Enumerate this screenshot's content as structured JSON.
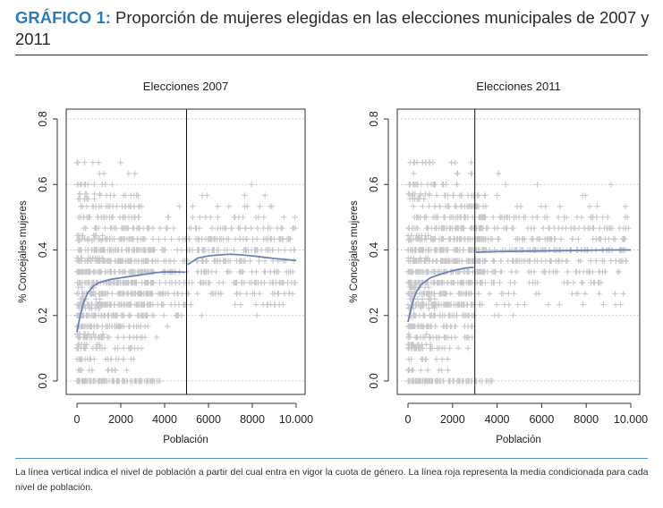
{
  "header": {
    "label": "GRÁFICO 1:",
    "title": "Proporción de mujeres elegidas en las elecciones municipales de 2007 y 2011"
  },
  "footnote": "La línea vertical indica el nivel de población a partir del cual entra en vigor la cuota de género. La línea roja representa la media condicionada para cada nivel de población.",
  "colors": {
    "label": "#2b7cb8",
    "points": "#c8c8cc",
    "line": "#6f82b8",
    "axis": "#333333",
    "grid": "#c4c4c4"
  },
  "chart_data": [
    {
      "type": "scatter",
      "title": "Elecciones 2007",
      "xlabel": "Población",
      "ylabel": "% Concejales mujeres",
      "xlim": [
        0,
        10000
      ],
      "ylim": [
        0,
        0.8
      ],
      "x_ticks": [
        0,
        2000,
        4000,
        6000,
        8000,
        10000
      ],
      "x_tick_labels": [
        "0",
        "2000",
        "4000",
        "6000",
        "8000",
        "10.000"
      ],
      "y_ticks": [
        0,
        0.2,
        0.4,
        0.6,
        0.8
      ],
      "y_tick_labels": [
        "0.0",
        "0.2",
        "0.4",
        "0.6",
        "0.8"
      ],
      "grid": "horizontal dotted",
      "marker": "+",
      "vline_x": 5000,
      "smooth_line": {
        "x": [
          0,
          150,
          300,
          500,
          750,
          1000,
          1500,
          2000,
          2500,
          3000,
          3500,
          4000,
          4500,
          4950,
          5050,
          5500,
          6000,
          6500,
          7000,
          7500,
          8000,
          8500,
          9000,
          9500,
          10000
        ],
        "y": [
          0.15,
          0.2,
          0.24,
          0.27,
          0.29,
          0.3,
          0.31,
          0.315,
          0.32,
          0.325,
          0.33,
          0.333,
          0.333,
          0.332,
          0.355,
          0.375,
          0.382,
          0.385,
          0.387,
          0.385,
          0.382,
          0.378,
          0.374,
          0.371,
          0.368
        ]
      }
    },
    {
      "type": "scatter",
      "title": "Elecciones 2011",
      "xlabel": "Población",
      "ylabel": "% Concejales mujeres",
      "xlim": [
        0,
        10000
      ],
      "ylim": [
        0,
        0.8
      ],
      "x_ticks": [
        0,
        2000,
        4000,
        6000,
        8000,
        10000
      ],
      "x_tick_labels": [
        "0",
        "2000",
        "4000",
        "6000",
        "8000",
        "10.000"
      ],
      "y_ticks": [
        0,
        0.2,
        0.4,
        0.6,
        0.8
      ],
      "y_tick_labels": [
        "0.0",
        "0.2",
        "0.4",
        "0.6",
        "0.8"
      ],
      "grid": "horizontal dotted",
      "marker": "+",
      "vline_x": 3000,
      "smooth_line": {
        "x": [
          0,
          100,
          250,
          400,
          600,
          800,
          1000,
          1400,
          1800,
          2200,
          2600,
          2950,
          3050,
          4000,
          5000,
          6000,
          7000,
          8000,
          9000,
          10000
        ],
        "y": [
          0.18,
          0.21,
          0.25,
          0.275,
          0.295,
          0.305,
          0.315,
          0.325,
          0.333,
          0.34,
          0.345,
          0.347,
          0.393,
          0.395,
          0.396,
          0.397,
          0.398,
          0.399,
          0.4,
          0.4
        ]
      }
    }
  ]
}
